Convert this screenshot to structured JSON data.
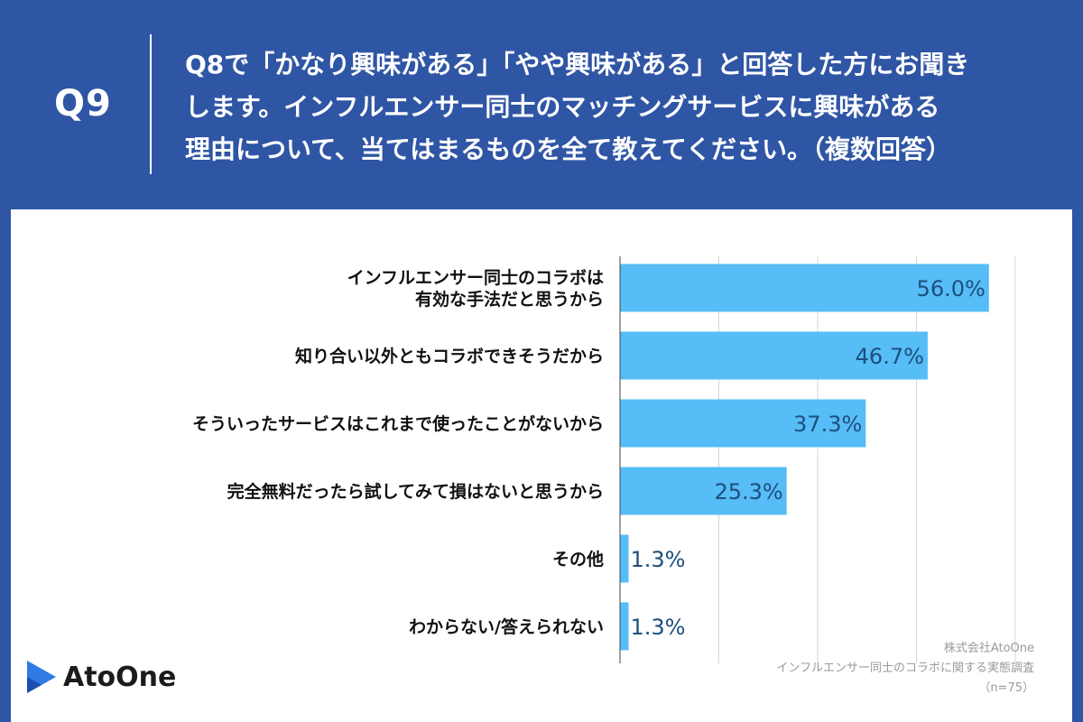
{
  "header": {
    "q_label": "Q9",
    "question_lines": [
      "Q8で「かなり興味がある」「やや興味がある」と回答した方にお聞き",
      "します。インフルエンサー同士のマッチングサービスに興味がある",
      "理由について、当てはまるものを全て教えてください。（複数回答）"
    ]
  },
  "chart_data": {
    "type": "bar",
    "orientation": "horizontal",
    "categories": [
      [
        "インフルエンサー同士のコラボは",
        "有効な手法だと思うから"
      ],
      [
        "知り合い以外ともコラボできそうだから"
      ],
      [
        "そういったサービスはこれまで使ったことがないから"
      ],
      [
        "完全無料だったら試してみて損はないと思うから"
      ],
      [
        "その他"
      ],
      [
        "わからない/答えられない"
      ]
    ],
    "values": [
      56.0,
      46.7,
      37.3,
      25.3,
      1.3,
      1.3
    ],
    "value_labels": [
      "56.0%",
      "46.7%",
      "37.3%",
      "25.3%",
      "1.3%",
      "1.3%"
    ],
    "xlim": [
      0,
      60
    ],
    "grid": true,
    "bar_color": "#56bdf6",
    "label_color": "#1d4f7d"
  },
  "footer": {
    "credit_lines": [
      "株式会社AtoOne",
      "インフルエンサー同士のコラボに関する実態調査",
      "（n=75）"
    ],
    "logo_text": "AtoOne",
    "logo_icon": "atoone-logo-icon"
  },
  "colors": {
    "background": "#2f55a5",
    "panel": "#ffffff"
  }
}
